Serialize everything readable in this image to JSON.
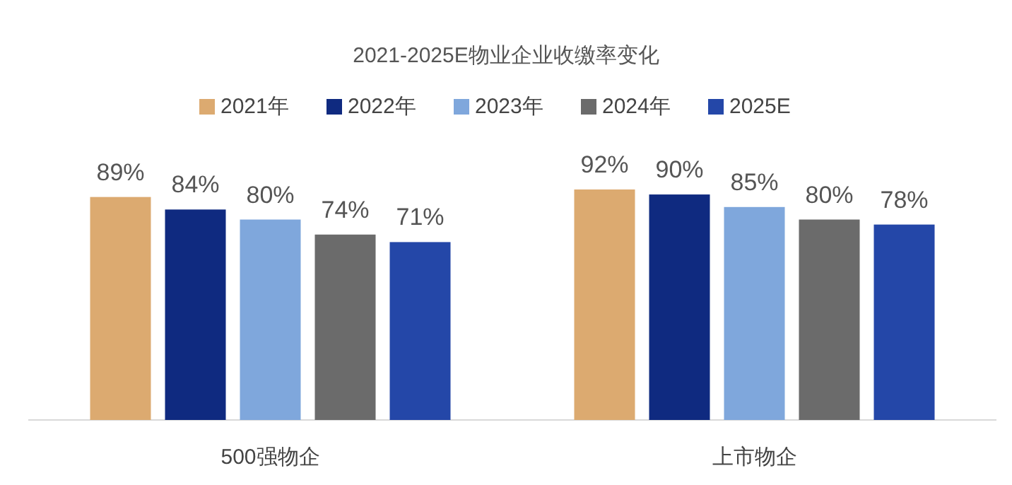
{
  "chart_data": {
    "type": "bar",
    "title": "2021-2025E物业企业收缴率变化",
    "categories": [
      "500强物企",
      "上市物企"
    ],
    "series": [
      {
        "name": "2021年",
        "color": "#dcaa70",
        "values": [
          89,
          92
        ],
        "value_labels": [
          "89%",
          "92%"
        ]
      },
      {
        "name": "2022年",
        "color": "#0f2a80",
        "values": [
          84,
          90
        ],
        "value_labels": [
          "84%",
          "90%"
        ]
      },
      {
        "name": "2023年",
        "color": "#7fa7dc",
        "values": [
          80,
          85
        ],
        "value_labels": [
          "80%",
          "85%"
        ]
      },
      {
        "name": "2024年",
        "color": "#6b6b6b",
        "values": [
          74,
          80
        ],
        "value_labels": [
          "74%",
          "80%"
        ]
      },
      {
        "name": "2025E",
        "color": "#2447a8",
        "values": [
          71,
          78
        ],
        "value_labels": [
          "71%",
          "78%"
        ]
      }
    ],
    "legend": "top",
    "grid": false
  }
}
